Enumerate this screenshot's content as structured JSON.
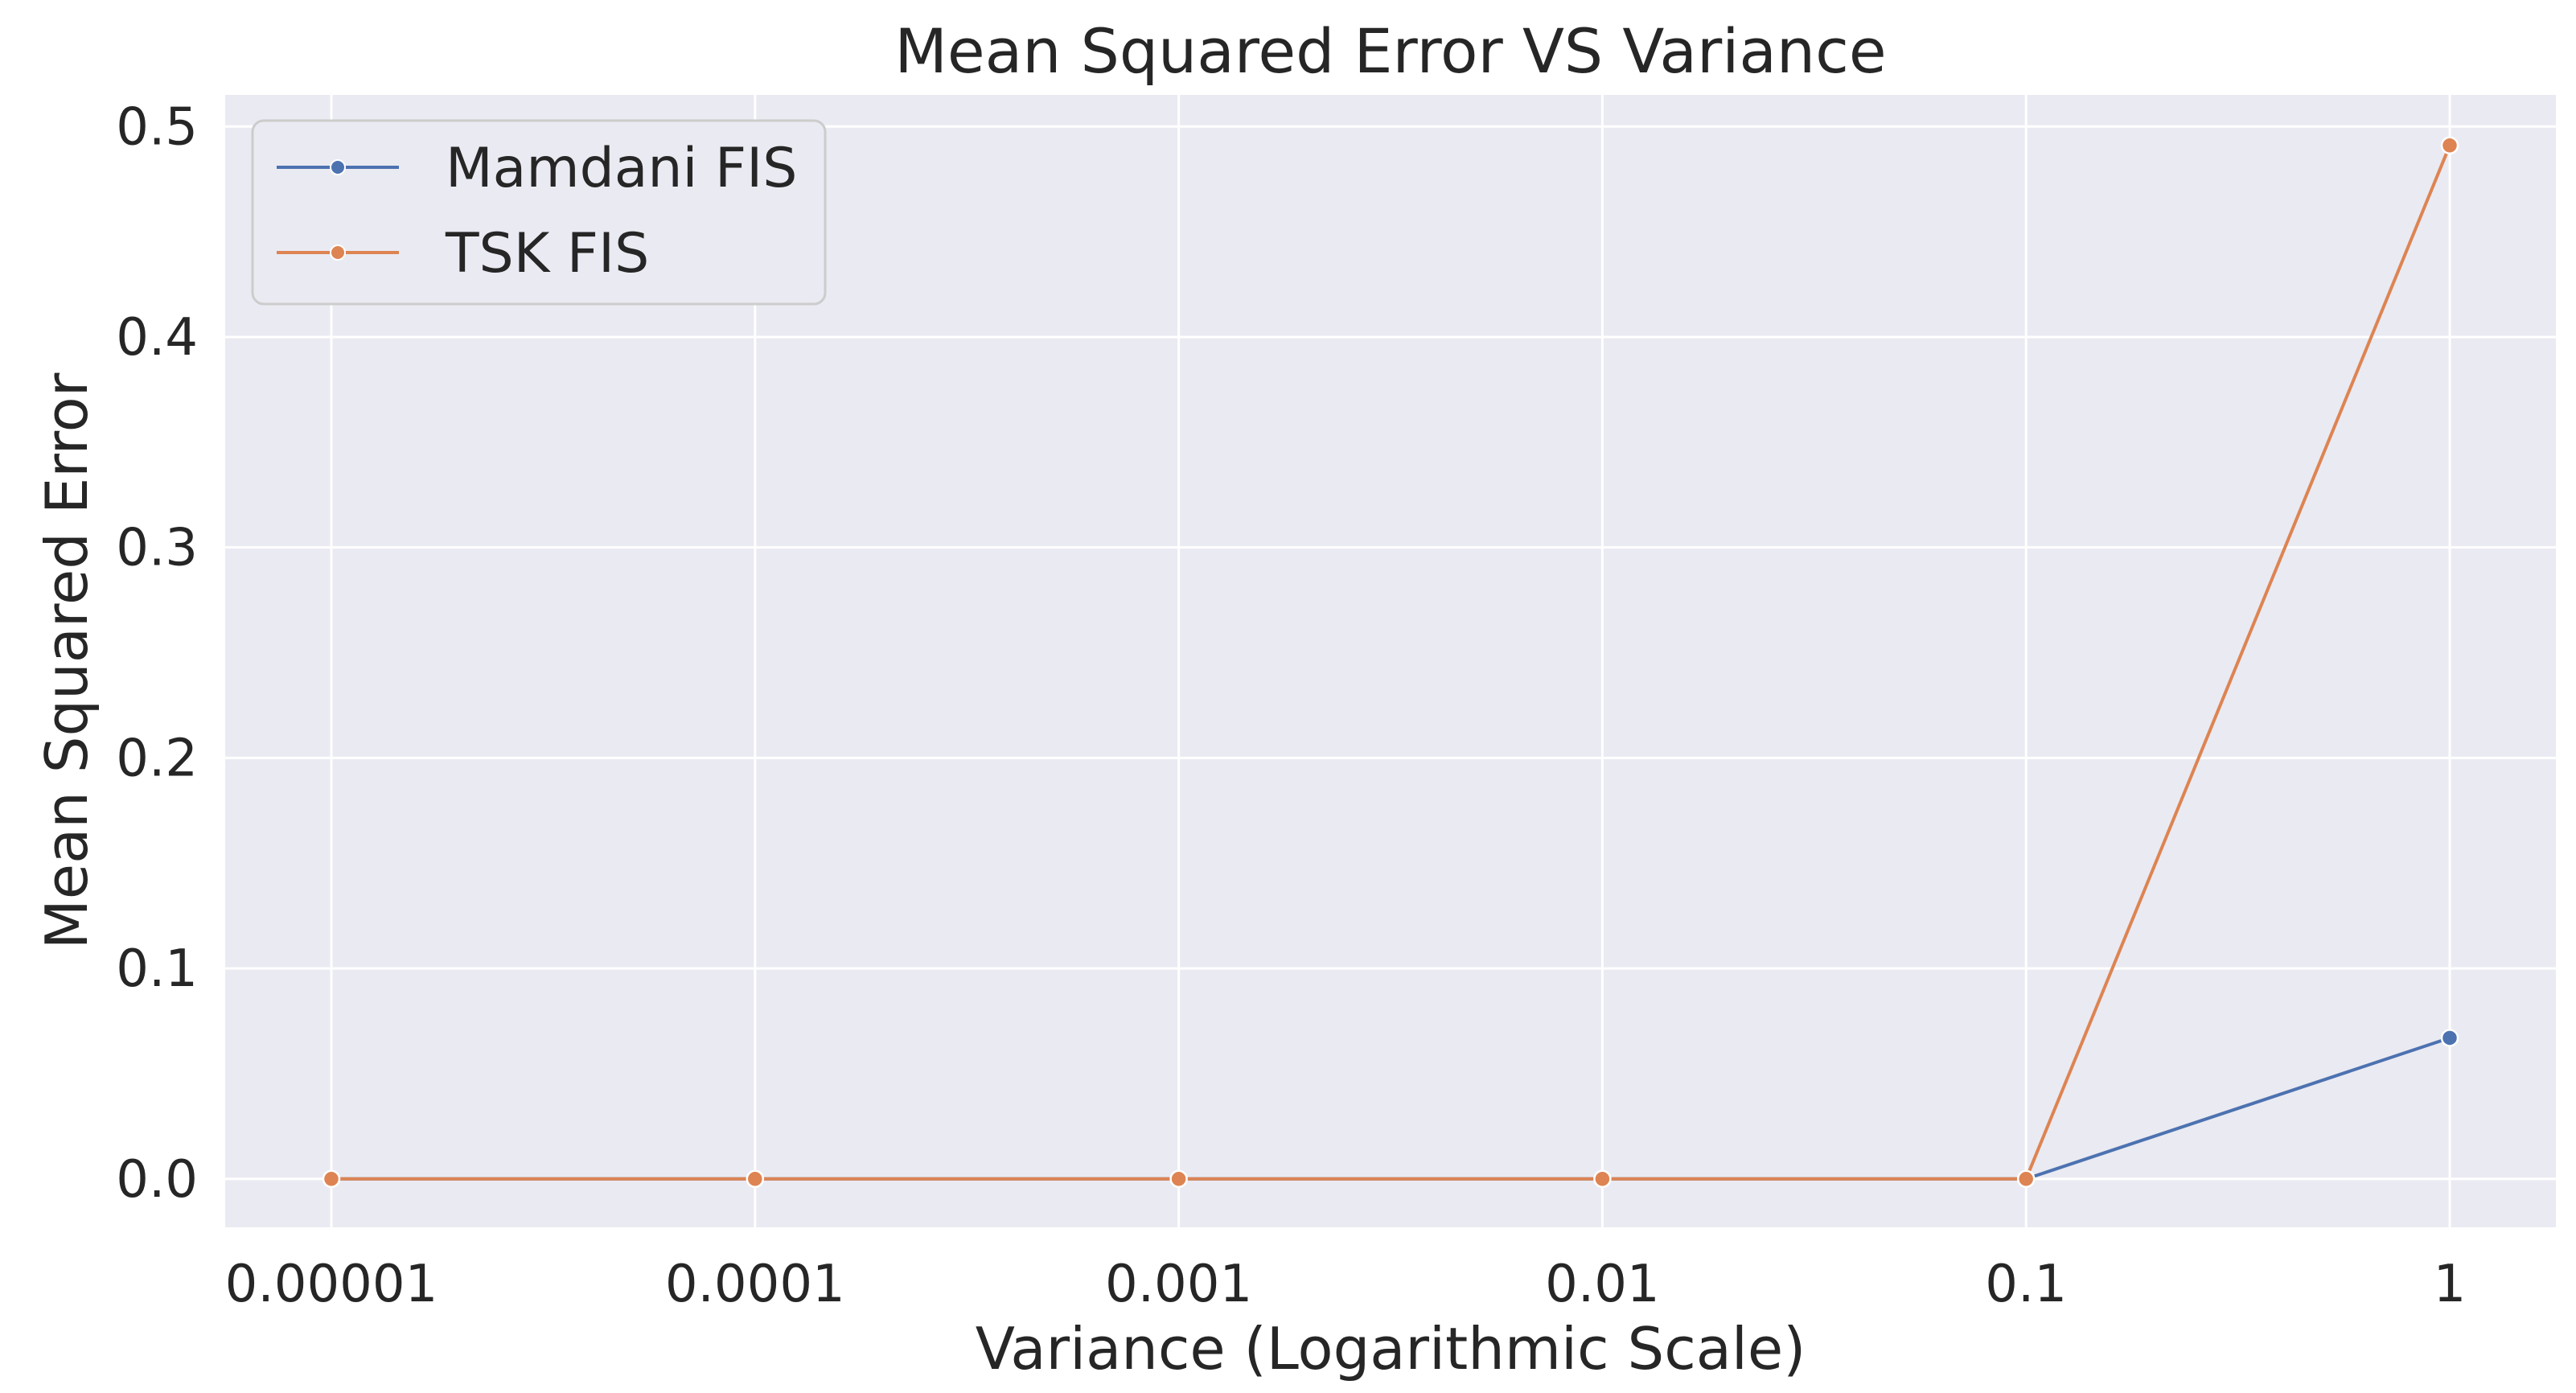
{
  "chart_data": {
    "type": "line",
    "title": "Mean Squared Error VS Variance",
    "xlabel": "Variance (Logarithmic Scale)",
    "ylabel": "Mean Squared Error",
    "x_scale": "log",
    "x": [
      1e-05,
      0.0001,
      0.001,
      0.01,
      0.1,
      1
    ],
    "x_tick_labels": [
      "0.00001",
      "0.0001",
      "0.001",
      "0.01",
      "0.1",
      "1"
    ],
    "y_ticks": [
      0.0,
      0.1,
      0.2,
      0.3,
      0.4,
      0.5
    ],
    "y_tick_labels": [
      "0.0",
      "0.1",
      "0.2",
      "0.3",
      "0.4",
      "0.5"
    ],
    "ylim": [
      -0.023,
      0.515
    ],
    "grid": true,
    "legend_position": "top-left",
    "series": [
      {
        "name": "Mamdani FIS",
        "color": "#4c72b0",
        "values": [
          0.0,
          0.0,
          0.0,
          0.0,
          0.0,
          0.067
        ]
      },
      {
        "name": "TSK FIS",
        "color": "#dd8452",
        "values": [
          0.0,
          0.0,
          0.0,
          0.0,
          0.0,
          0.491
        ]
      }
    ],
    "plot_background": "#eaeaf2",
    "grid_color": "#ffffff"
  }
}
